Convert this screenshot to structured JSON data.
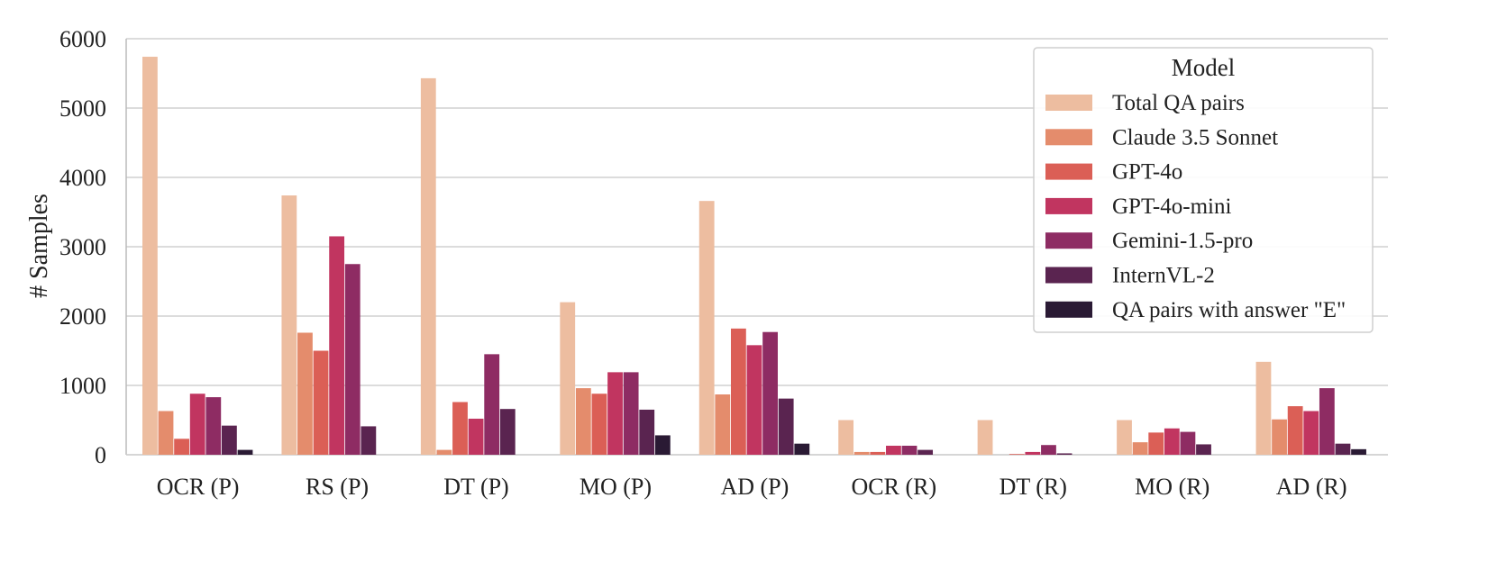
{
  "chart_data": {
    "type": "bar",
    "title": "",
    "xlabel": "",
    "ylabel": "# Samples",
    "ylim": [
      0,
      6000
    ],
    "yticks": [
      0,
      1000,
      2000,
      3000,
      4000,
      5000,
      6000
    ],
    "grid": true,
    "legend_title": "Model",
    "legend_position": "top-right",
    "categories": [
      "OCR (P)",
      "RS (P)",
      "DT (P)",
      "MO (P)",
      "AD (P)",
      "OCR (R)",
      "DT (R)",
      "MO (R)",
      "AD (R)"
    ],
    "series": [
      {
        "name": "Total QA pairs",
        "color": "#EDBDA0",
        "values": [
          5740,
          3740,
          5430,
          2200,
          3660,
          500,
          500,
          500,
          1340
        ]
      },
      {
        "name": "Claude 3.5 Sonnet",
        "color": "#E48C6C",
        "values": [
          630,
          1760,
          70,
          960,
          870,
          40,
          0,
          180,
          510
        ]
      },
      {
        "name": "GPT-4o",
        "color": "#DB5F56",
        "values": [
          230,
          1500,
          760,
          880,
          1820,
          40,
          10,
          320,
          700
        ]
      },
      {
        "name": "GPT-4o-mini",
        "color": "#C13560",
        "values": [
          880,
          3150,
          520,
          1190,
          1580,
          130,
          40,
          380,
          630
        ]
      },
      {
        "name": "Gemini-1.5-pro",
        "color": "#8E2C63",
        "values": [
          830,
          2750,
          1450,
          1190,
          1770,
          130,
          140,
          330,
          960
        ]
      },
      {
        "name": "InternVL-2",
        "color": "#5A2450",
        "values": [
          420,
          410,
          660,
          650,
          810,
          70,
          20,
          150,
          160
        ]
      },
      {
        "name": "QA pairs with answer \"E\"",
        "color": "#2A1A34",
        "values": [
          70,
          0,
          0,
          280,
          160,
          0,
          0,
          0,
          80
        ]
      }
    ]
  }
}
